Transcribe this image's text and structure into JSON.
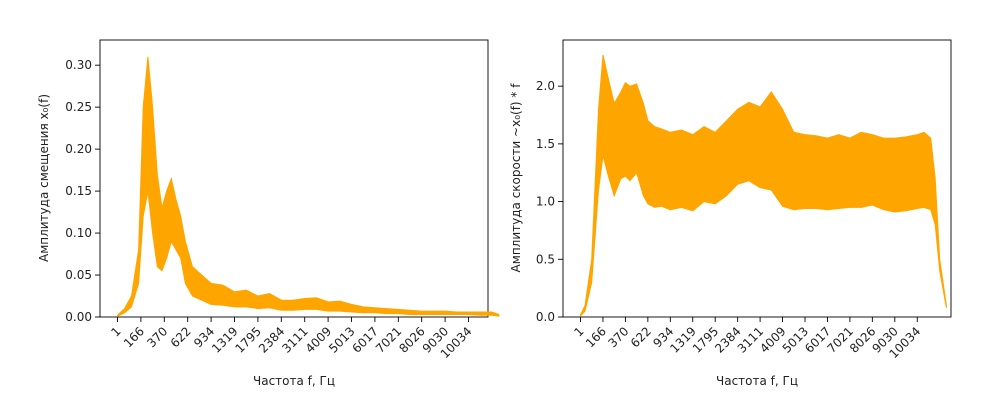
{
  "colors": {
    "band_fill": "#FFA500",
    "axes": "#000000",
    "background": "#ffffff"
  },
  "chart_data": [
    {
      "type": "area",
      "xlabel": "Частота f, Гц",
      "ylabel": "Амплитуда смещения x₀(f)",
      "x_categories": [
        "1",
        "166",
        "370",
        "622",
        "934",
        "1319",
        "1795",
        "2384",
        "3111",
        "4009",
        "5013",
        "6017",
        "7021",
        "8026",
        "9030",
        "10034"
      ],
      "ylim": [
        0,
        0.33
      ],
      "yticks": [
        "0.00",
        "0.05",
        "0.10",
        "0.15",
        "0.20",
        "0.25",
        "0.30"
      ],
      "grid": false,
      "series": [
        {
          "x": [
            0.0,
            0.3,
            0.6,
            0.9,
            1.1,
            1.3,
            1.5,
            1.7,
            1.9,
            2.1,
            2.3,
            2.5,
            2.7,
            2.9,
            3.2,
            3.6,
            4.0,
            4.5,
            5.0,
            5.5,
            6.0,
            6.5,
            7.0,
            7.5,
            8.0,
            8.5,
            9.0,
            9.5,
            10.0,
            10.5,
            11.0,
            11.5,
            12.0,
            12.5,
            13.0,
            13.5,
            14.0,
            14.5,
            15.0,
            15.5,
            16.0,
            16.3
          ],
          "upper": [
            0.002,
            0.01,
            0.025,
            0.08,
            0.25,
            0.31,
            0.25,
            0.17,
            0.13,
            0.15,
            0.165,
            0.14,
            0.12,
            0.09,
            0.06,
            0.05,
            0.04,
            0.038,
            0.03,
            0.032,
            0.025,
            0.028,
            0.02,
            0.02,
            0.022,
            0.023,
            0.018,
            0.019,
            0.015,
            0.012,
            0.011,
            0.01,
            0.009,
            0.008,
            0.007,
            0.007,
            0.007,
            0.006,
            0.006,
            0.006,
            0.006,
            0.003
          ],
          "lower": [
            0.001,
            0.005,
            0.012,
            0.04,
            0.12,
            0.15,
            0.1,
            0.06,
            0.055,
            0.07,
            0.09,
            0.08,
            0.07,
            0.04,
            0.025,
            0.02,
            0.015,
            0.014,
            0.012,
            0.012,
            0.01,
            0.011,
            0.008,
            0.008,
            0.009,
            0.009,
            0.007,
            0.007,
            0.006,
            0.005,
            0.005,
            0.004,
            0.004,
            0.003,
            0.003,
            0.003,
            0.003,
            0.003,
            0.003,
            0.002,
            0.002,
            0.001
          ]
        }
      ]
    },
    {
      "type": "area",
      "xlabel": "Частота f, Гц",
      "ylabel": "Амплитуда скорости ~x₀(f) * f",
      "x_categories": [
        "1",
        "166",
        "370",
        "622",
        "934",
        "1319",
        "1795",
        "2384",
        "3111",
        "4009",
        "5013",
        "6017",
        "7021",
        "8026",
        "9030",
        "10034"
      ],
      "ylim": [
        0,
        2.4
      ],
      "yticks": [
        "0.0",
        "0.5",
        "1.0",
        "1.5",
        "2.0"
      ],
      "grid": false,
      "series": [
        {
          "x": [
            0.0,
            0.2,
            0.5,
            0.8,
            1.0,
            1.2,
            1.5,
            1.8,
            2.0,
            2.2,
            2.5,
            2.8,
            3.0,
            3.3,
            3.6,
            4.0,
            4.5,
            5.0,
            5.5,
            6.0,
            6.5,
            7.0,
            7.5,
            8.0,
            8.5,
            9.0,
            9.5,
            10.0,
            10.5,
            11.0,
            11.5,
            12.0,
            12.5,
            13.0,
            13.5,
            14.0,
            14.5,
            15.0,
            15.3,
            15.6,
            15.8,
            16.0,
            16.3
          ],
          "upper": [
            0.02,
            0.1,
            0.5,
            1.8,
            2.27,
            2.1,
            1.85,
            1.95,
            2.03,
            2.0,
            2.02,
            1.85,
            1.7,
            1.65,
            1.63,
            1.6,
            1.62,
            1.58,
            1.65,
            1.6,
            1.7,
            1.8,
            1.86,
            1.82,
            1.95,
            1.8,
            1.6,
            1.58,
            1.57,
            1.55,
            1.58,
            1.55,
            1.6,
            1.58,
            1.55,
            1.55,
            1.56,
            1.58,
            1.6,
            1.55,
            1.2,
            0.5,
            0.1
          ],
          "lower": [
            0.01,
            0.05,
            0.3,
            1.1,
            1.4,
            1.25,
            1.05,
            1.2,
            1.22,
            1.18,
            1.25,
            1.05,
            0.98,
            0.95,
            0.96,
            0.93,
            0.95,
            0.92,
            1.0,
            0.98,
            1.05,
            1.15,
            1.18,
            1.12,
            1.1,
            0.96,
            0.93,
            0.94,
            0.94,
            0.93,
            0.94,
            0.95,
            0.95,
            0.97,
            0.93,
            0.91,
            0.92,
            0.94,
            0.95,
            0.93,
            0.8,
            0.4,
            0.08
          ]
        }
      ]
    }
  ]
}
